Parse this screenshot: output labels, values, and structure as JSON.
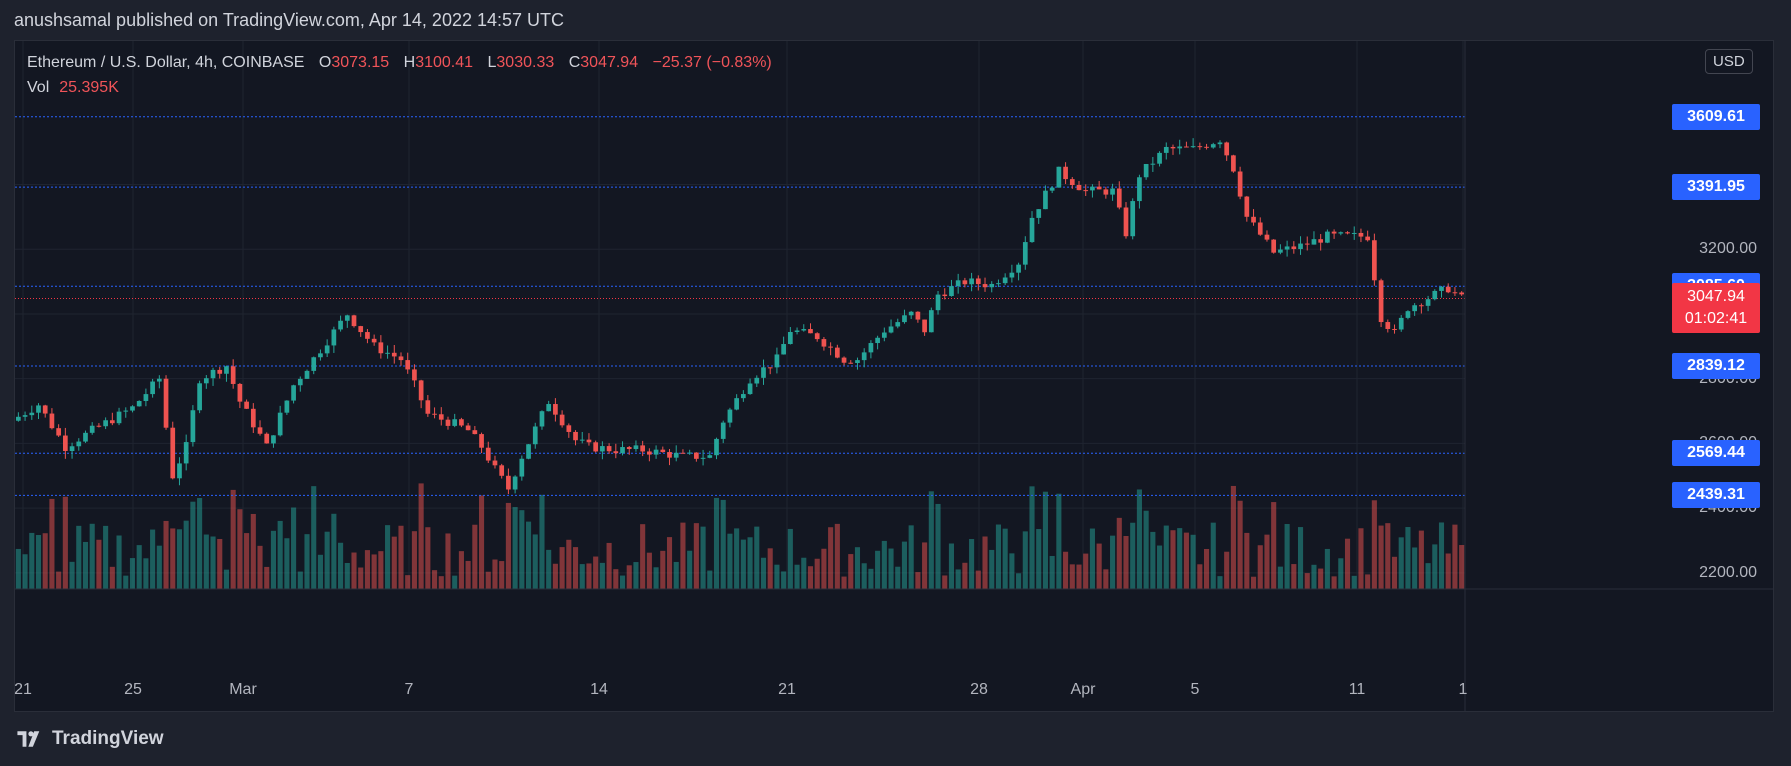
{
  "header": {
    "published_line": "anushsamal published on TradingView.com, Apr 14, 2022 14:57 UTC"
  },
  "legend": {
    "symbol": "Ethereum / U.S. Dollar, 4h, COINBASE",
    "open_label": "O",
    "open": "3073.15",
    "high_label": "H",
    "high": "3100.41",
    "low_label": "L",
    "low": "3030.33",
    "close_label": "C",
    "close": "3047.94",
    "change": "−25.37 (−0.83%)",
    "vol_label": "Vol",
    "vol": "25.395K"
  },
  "currency_button": "USD",
  "y_axis_labels": [
    "3200.00",
    "2800.00",
    "2600.00",
    "2400.00",
    "2200.00"
  ],
  "price_tags": [
    "3609.61",
    "3391.95",
    "3085.60",
    "2839.12",
    "2569.44",
    "2439.31"
  ],
  "last_price": {
    "price": "3047.94",
    "countdown": "01:02:41"
  },
  "x_axis_labels": [
    "21",
    "25",
    "Mar",
    "7",
    "14",
    "21",
    "28",
    "Apr",
    "5",
    "11",
    "1"
  ],
  "brand": "TradingView",
  "colors": {
    "up": "#26a69a",
    "down": "#ef5350",
    "level": "#2962ff",
    "last": "#f23645"
  },
  "chart_data": {
    "type": "candlestick",
    "title": "Ethereum / U.S. Dollar, 4h, COINBASE",
    "ylim": [
      2150,
      3720
    ],
    "horizontal_levels": [
      3609.61,
      3391.95,
      3085.6,
      2839.12,
      2569.44,
      2439.31
    ],
    "last_price": 3047.94,
    "price_path": [
      [
        0,
        2670
      ],
      [
        4,
        2720
      ],
      [
        8,
        2590
      ],
      [
        12,
        2640
      ],
      [
        18,
        2710
      ],
      [
        22,
        2800
      ],
      [
        24,
        2500
      ],
      [
        26,
        2590
      ],
      [
        28,
        2800
      ],
      [
        32,
        2840
      ],
      [
        34,
        2730
      ],
      [
        38,
        2590
      ],
      [
        42,
        2780
      ],
      [
        46,
        2890
      ],
      [
        50,
        3000
      ],
      [
        54,
        2900
      ],
      [
        58,
        2860
      ],
      [
        60,
        2780
      ],
      [
        62,
        2690
      ],
      [
        66,
        2660
      ],
      [
        68,
        2640
      ],
      [
        70,
        2590
      ],
      [
        72,
        2520
      ],
      [
        74,
        2460
      ],
      [
        76,
        2560
      ],
      [
        80,
        2730
      ],
      [
        84,
        2610
      ],
      [
        86,
        2590
      ],
      [
        90,
        2580
      ],
      [
        94,
        2580
      ],
      [
        100,
        2560
      ],
      [
        104,
        2560
      ],
      [
        106,
        2670
      ],
      [
        110,
        2800
      ],
      [
        114,
        2860
      ],
      [
        116,
        2950
      ],
      [
        120,
        2930
      ],
      [
        124,
        2860
      ],
      [
        126,
        2860
      ],
      [
        130,
        2950
      ],
      [
        134,
        3000
      ],
      [
        136,
        2950
      ],
      [
        138,
        3060
      ],
      [
        142,
        3100
      ],
      [
        146,
        3090
      ],
      [
        150,
        3160
      ],
      [
        152,
        3300
      ],
      [
        156,
        3440
      ],
      [
        160,
        3380
      ],
      [
        164,
        3380
      ],
      [
        166,
        3250
      ],
      [
        168,
        3430
      ],
      [
        172,
        3510
      ],
      [
        176,
        3510
      ],
      [
        180,
        3540
      ],
      [
        182,
        3450
      ],
      [
        184,
        3300
      ],
      [
        188,
        3190
      ],
      [
        192,
        3210
      ],
      [
        196,
        3240
      ],
      [
        202,
        3240
      ],
      [
        204,
        2990
      ],
      [
        206,
        2940
      ],
      [
        208,
        3020
      ],
      [
        212,
        3060
      ],
      [
        214,
        3080
      ],
      [
        216,
        3047.94
      ]
    ],
    "volume": {
      "last": 25395,
      "max_bar": 480
    }
  }
}
